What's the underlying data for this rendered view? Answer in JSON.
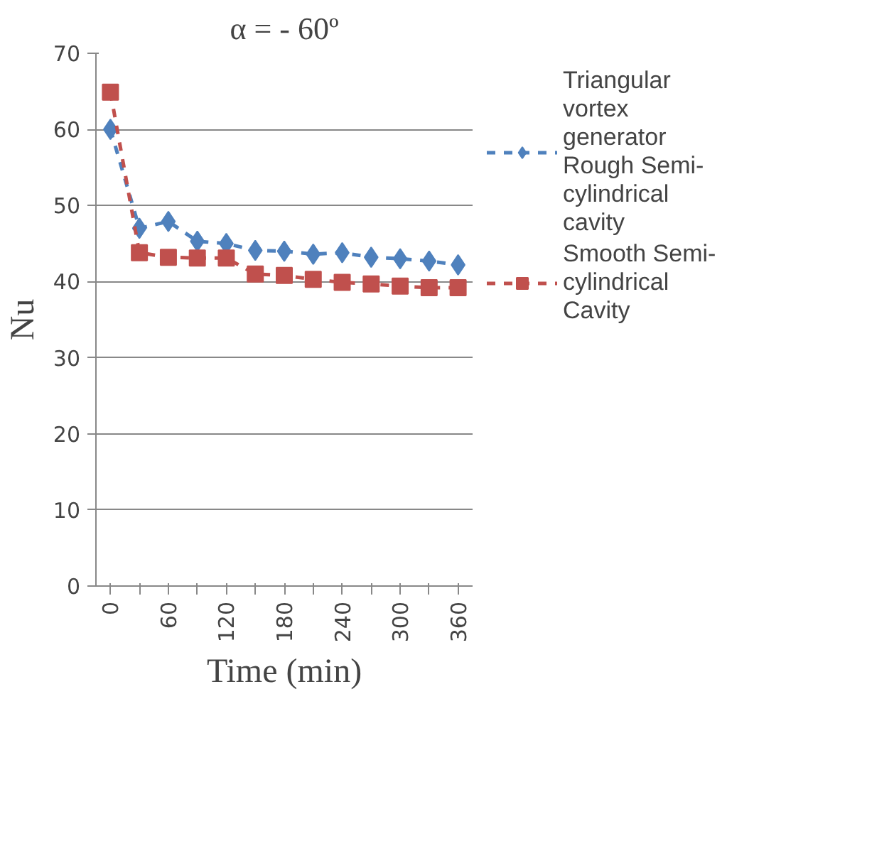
{
  "chart_data": {
    "type": "line",
    "title": "α = - 60º",
    "xlabel": "Time (min)",
    "ylabel": "Nu",
    "categories": [
      "0",
      null,
      "60",
      null,
      "120",
      null,
      "180",
      null,
      "240",
      null,
      "300",
      null,
      "360"
    ],
    "ylim": [
      0,
      70
    ],
    "yticks": [
      0,
      10,
      20,
      30,
      40,
      50,
      60,
      70
    ],
    "grid": "y",
    "legend": "right",
    "line_style": "dashed",
    "series": [
      {
        "name": "Triangular vortex generator Rough Semi-cylindrical cavity",
        "color": "#4f81bd",
        "marker": "diamond",
        "values": [
          60,
          47.0,
          47.9,
          45.3,
          45.0,
          44.1,
          44.0,
          43.6,
          43.8,
          43.2,
          43.0,
          42.7,
          42.2
        ]
      },
      {
        "name": "Smooth Semi-cylindrical Cavity",
        "color": "#c0504d",
        "marker": "square",
        "values": [
          64.9,
          43.8,
          43.2,
          43.1,
          43.1,
          41.0,
          40.8,
          40.3,
          39.9,
          39.7,
          39.4,
          39.2,
          39.2
        ]
      }
    ]
  }
}
